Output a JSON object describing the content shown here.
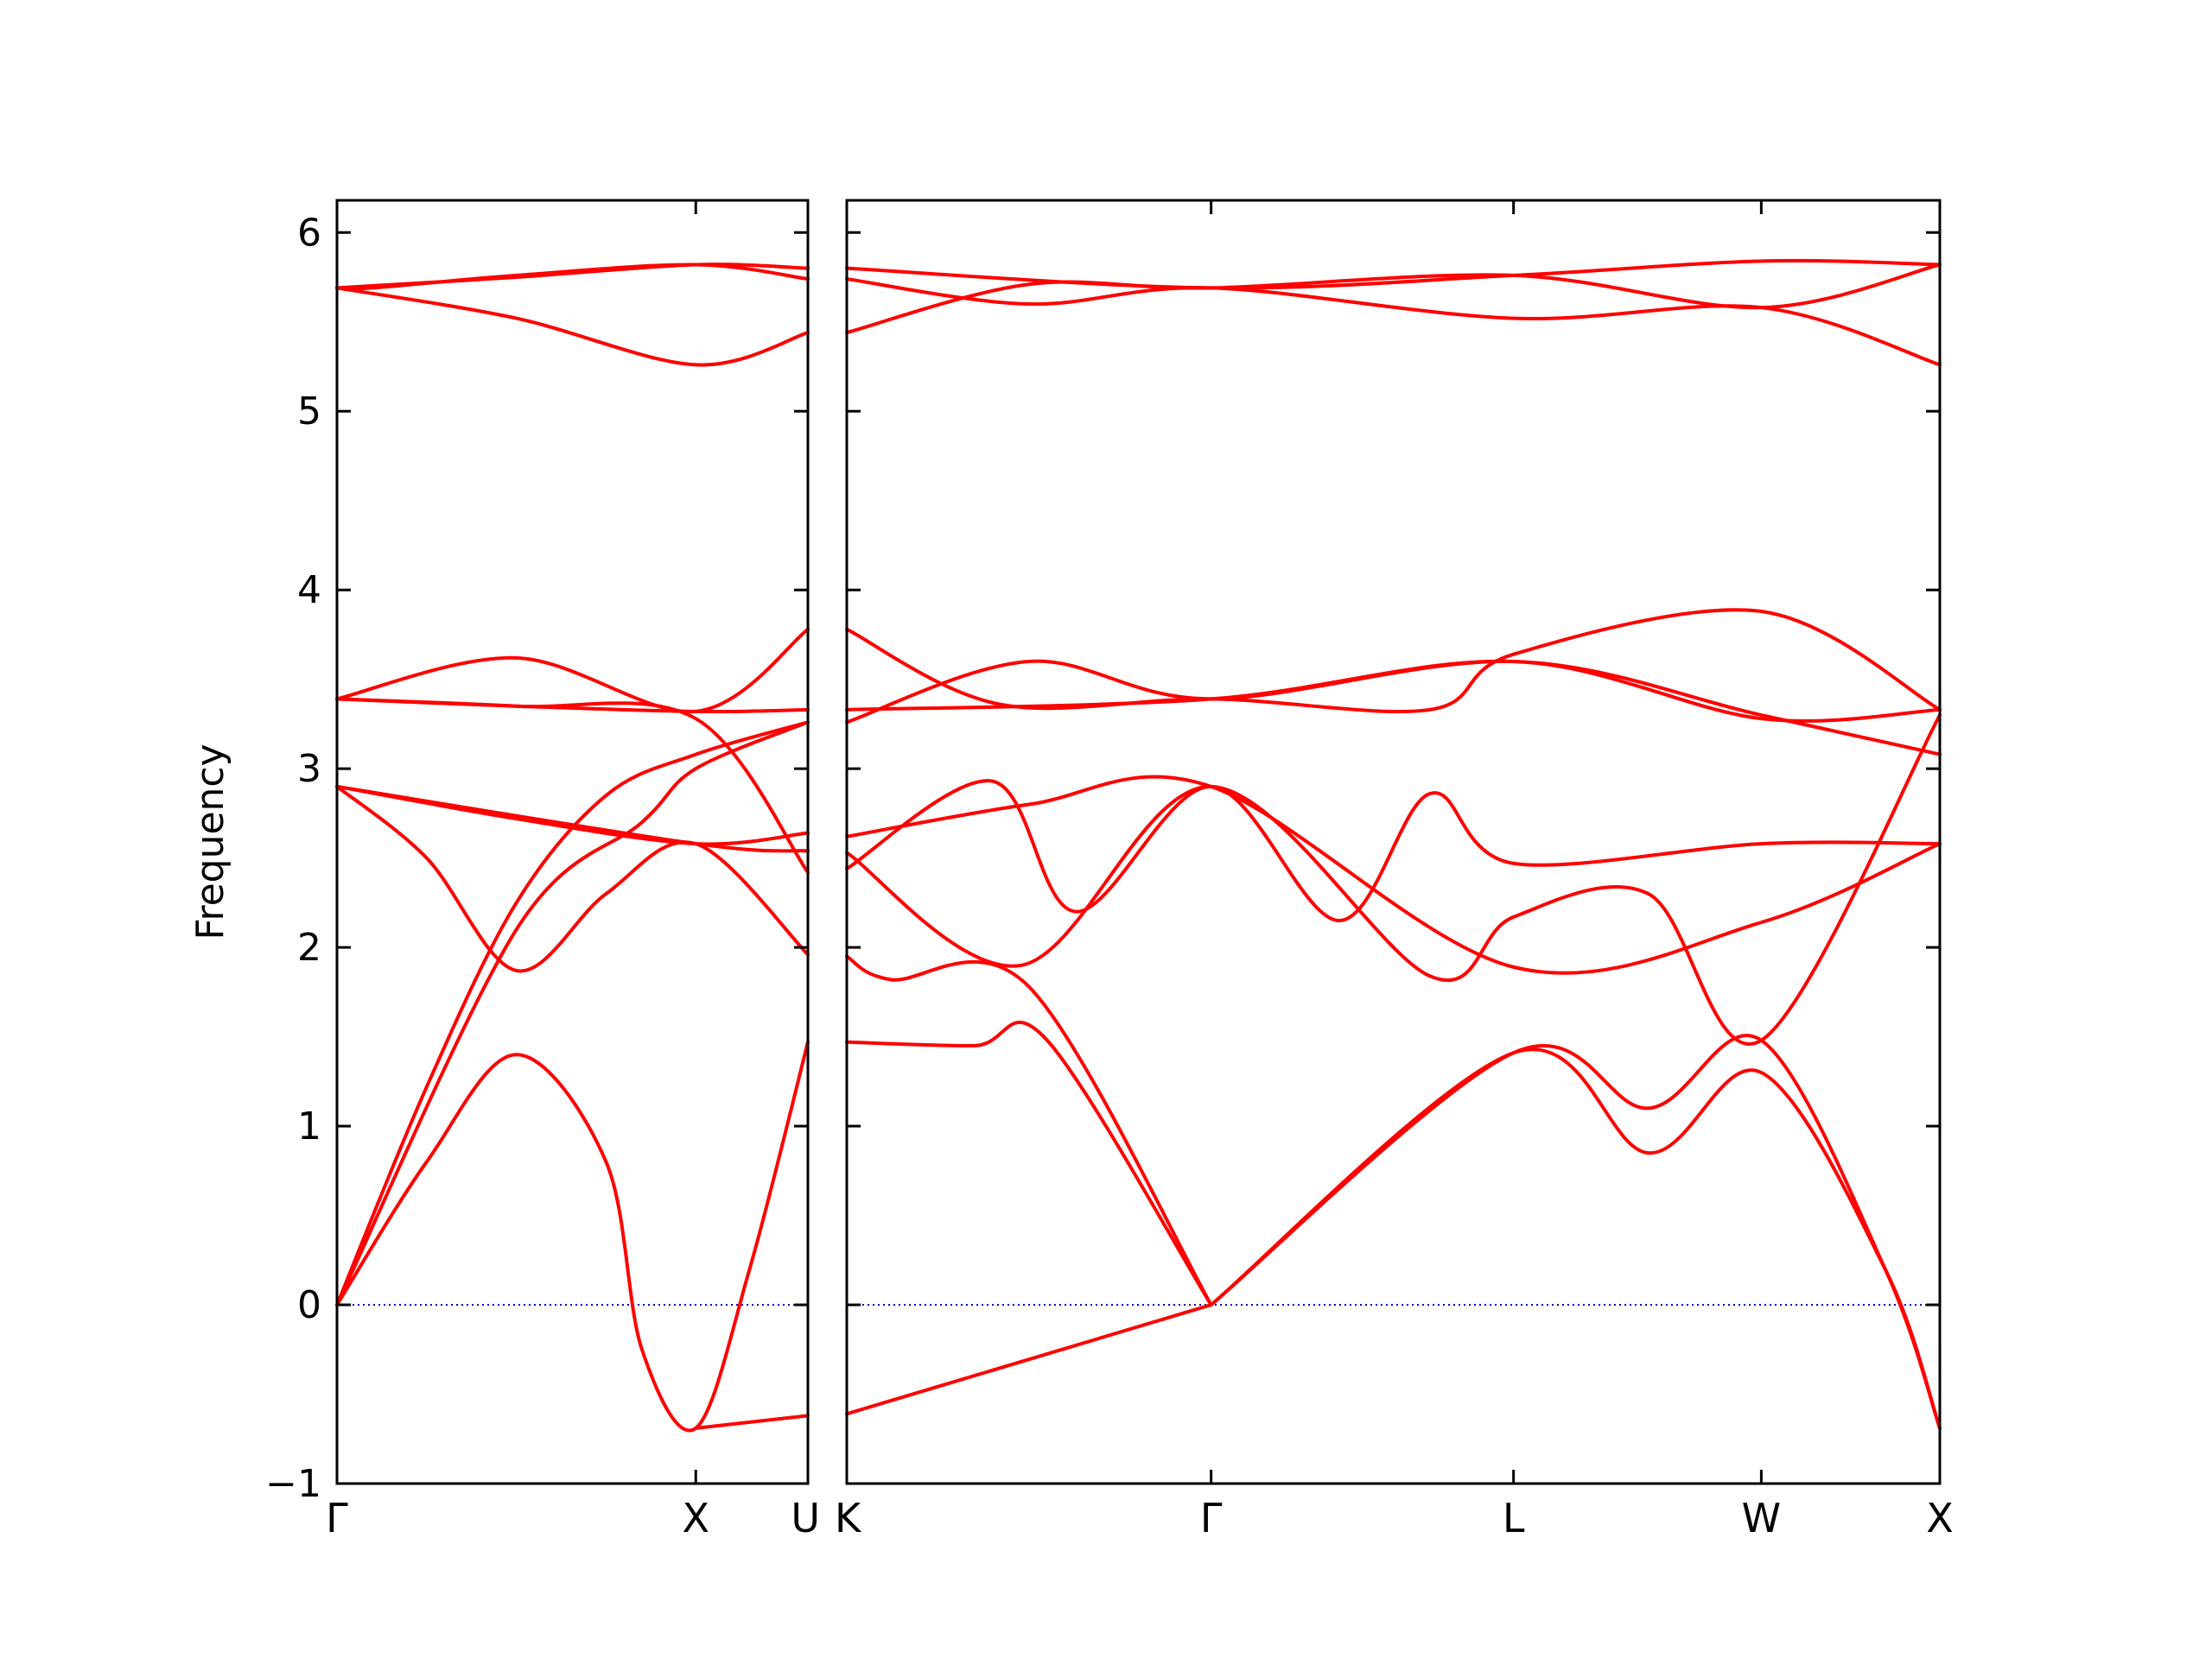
{
  "chart_data": {
    "type": "line",
    "title": "",
    "xlabel": "",
    "ylabel": "Frequency",
    "ylim": [
      -1,
      6.18
    ],
    "yticks": [
      -1,
      0,
      1,
      2,
      3,
      4,
      5,
      6
    ],
    "ytick_labels": [
      "−1",
      "0",
      "1",
      "2",
      "3",
      "4",
      "5",
      "6"
    ],
    "grid": false,
    "legend": "none",
    "line_color": "#ff0000",
    "zero_line_color": "#0000cc",
    "panels": [
      {
        "xlim": [
          0,
          1.3125
        ],
        "ticks": [
          {
            "x": 0,
            "label": "Γ"
          },
          {
            "x": 1,
            "label": "X"
          },
          {
            "x": 1.3125,
            "label": "U"
          }
        ],
        "bands": [
          {
            "name": "",
            "x": [
              0,
              0.5,
              1,
              1.3125
            ],
            "y": [
              5.69,
              5.75,
              5.82,
              5.8
            ]
          },
          {
            "name": "",
            "x": [
              0,
              0.5,
              1,
              1.3125
            ],
            "y": [
              5.69,
              5.52,
              5.26,
              5.44
            ]
          },
          {
            "name": "",
            "x": [
              0,
              0.1,
              0.5,
              1,
              1.3125
            ],
            "y": [
              5.69,
              5.69,
              5.76,
              5.82,
              5.74
            ]
          },
          {
            "name": "",
            "x": [
              0,
              0.5,
              1,
              1.3125
            ],
            "y": [
              3.39,
              3.62,
              3.32,
              3.78
            ]
          },
          {
            "name": "",
            "x": [
              0,
              0.5,
              1,
              1.3125
            ],
            "y": [
              3.39,
              3.35,
              3.32,
              3.33
            ]
          },
          {
            "name": "",
            "x": [
              0,
              0.5,
              1,
              1.3125
            ],
            "y": [
              2.9,
              2.72,
              2.58,
              2.64
            ]
          },
          {
            "name": "",
            "x": [
              0,
              0.25,
              0.5,
              0.75,
              1,
              1.3125
            ],
            "y": [
              2.9,
              2.5,
              1.87,
              2.3,
              2.58,
              1.96
            ]
          },
          {
            "name": "",
            "x": [
              0,
              0.25,
              0.5,
              0.75,
              1,
              1.3125
            ],
            "y": [
              0,
              1.22,
              2.25,
              2.85,
              3.08,
              3.26
            ]
          },
          {
            "name": "",
            "x": [
              0,
              0.5,
              1,
              1.3125
            ],
            "y": [
              3.39,
              3.35,
              3.28,
              2.42
            ]
          },
          {
            "name": "",
            "x": [
              0,
              1,
              1.3125
            ],
            "y": [
              2.9,
              2.58,
              2.54
            ]
          },
          {
            "name": "",
            "x": [
              0,
              0.25,
              0.5,
              0.75,
              0.85,
              1,
              1.15,
              1.3125
            ],
            "y": [
              0,
              0.8,
              1.4,
              0.8,
              -0.25,
              -0.69,
              0.2,
              1.47
            ]
          },
          {
            "name": "",
            "x": [
              0,
              0.5,
              0.85,
              1,
              1.3125
            ],
            "y": [
              0,
              2.1,
              2.7,
              3.0,
              3.26
            ]
          },
          {
            "name": "",
            "x": [
              1,
              1.3125
            ],
            "y": [
              -0.69,
              -0.62
            ]
          }
        ]
      },
      {
        "xlim": [
          0,
          3.0
        ],
        "ticks": [
          {
            "x": 0,
            "label": "K"
          },
          {
            "x": 1.0,
            "label": "Γ"
          },
          {
            "x": 1.83,
            "label": "L"
          },
          {
            "x": 2.51,
            "label": "W"
          },
          {
            "x": 3.0,
            "label": "X"
          }
        ],
        "bands": [
          {
            "name": "",
            "x": [
              0,
              1.0,
              1.83,
              2.51,
              3.0
            ],
            "y": [
              5.8,
              5.69,
              5.76,
              5.84,
              5.82
            ]
          },
          {
            "name": "",
            "x": [
              0,
              0.5,
              1.0,
              1.83,
              2.51,
              3.0
            ],
            "y": [
              5.74,
              5.6,
              5.69,
              5.52,
              5.58,
              5.26
            ]
          },
          {
            "name": "",
            "x": [
              0,
              0.5,
              1.0,
              1.83,
              2.51,
              3.0
            ],
            "y": [
              5.44,
              5.71,
              5.69,
              5.76,
              5.58,
              5.82
            ]
          },
          {
            "name": "",
            "x": [
              0,
              0.42,
              1.0,
              1.6,
              1.83,
              2.51,
              3.0
            ],
            "y": [
              3.78,
              3.36,
              3.39,
              3.33,
              3.64,
              3.88,
              3.33
            ]
          },
          {
            "name": "",
            "x": [
              0,
              0.5,
              1.0,
              1.83,
              2.51,
              3.0
            ],
            "y": [
              3.26,
              3.6,
              3.39,
              3.6,
              3.3,
              3.08
            ]
          },
          {
            "name": "",
            "x": [
              0,
              1.0,
              1.83,
              2.51,
              3.0
            ],
            "y": [
              3.33,
              3.39,
              3.6,
              3.28,
              3.33
            ]
          },
          {
            "name": "",
            "x": [
              0,
              0.4,
              0.63,
              1.0,
              1.35,
              1.6,
              1.83,
              2.51,
              3.0
            ],
            "y": [
              2.44,
              2.93,
              2.2,
              2.9,
              2.15,
              2.86,
              2.47,
              2.58,
              2.58
            ]
          },
          {
            "name": "",
            "x": [
              0,
              0.5,
              1.0,
              1.83,
              2.51,
              3.0
            ],
            "y": [
              2.62,
              2.8,
              2.9,
              1.89,
              2.14,
              2.58
            ]
          },
          {
            "name": "",
            "x": [
              0,
              0.48,
              1.0,
              1.6,
              1.83,
              2.2,
              2.51,
              3.0
            ],
            "y": [
              2.53,
              1.9,
              2.9,
              1.84,
              2.17,
              2.3,
              1.48,
              3.3
            ]
          },
          {
            "name": "",
            "x": [
              0,
              0.12,
              0.5,
              1.0
            ],
            "y": [
              1.95,
              1.82,
              1.78,
              0
            ]
          },
          {
            "name": "",
            "x": [
              0,
              0.35,
              0.55,
              1.0
            ],
            "y": [
              1.47,
              1.45,
              1.48,
              0
            ]
          },
          {
            "name": "",
            "x": [
              1.0,
              1.83,
              2.2,
              2.51,
              2.85,
              3.0
            ],
            "y": [
              0,
              1.41,
              0.85,
              1.3,
              0.2,
              -0.69
            ]
          },
          {
            "name": "",
            "x": [
              1.0,
              1.83,
              2.2,
              2.51,
              2.85,
              3.0
            ],
            "y": [
              0,
              1.41,
              1.1,
              1.48,
              0.2,
              -0.69
            ]
          },
          {
            "name": "",
            "x": [
              0,
              1.0
            ],
            "y": [
              -0.61,
              0
            ]
          }
        ]
      }
    ]
  }
}
